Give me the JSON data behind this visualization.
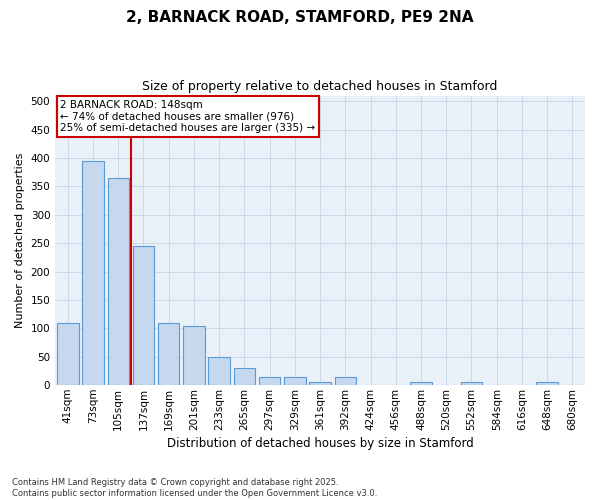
{
  "title": "2, BARNACK ROAD, STAMFORD, PE9 2NA",
  "subtitle": "Size of property relative to detached houses in Stamford",
  "xlabel": "Distribution of detached houses by size in Stamford",
  "ylabel": "Number of detached properties",
  "footer": "Contains HM Land Registry data © Crown copyright and database right 2025.\nContains public sector information licensed under the Open Government Licence v3.0.",
  "categories": [
    "41sqm",
    "73sqm",
    "105sqm",
    "137sqm",
    "169sqm",
    "201sqm",
    "233sqm",
    "265sqm",
    "297sqm",
    "329sqm",
    "361sqm",
    "392sqm",
    "424sqm",
    "456sqm",
    "488sqm",
    "520sqm",
    "552sqm",
    "584sqm",
    "616sqm",
    "648sqm",
    "680sqm"
  ],
  "values": [
    110,
    395,
    365,
    245,
    110,
    105,
    50,
    30,
    15,
    15,
    5,
    15,
    0,
    0,
    5,
    0,
    5,
    0,
    0,
    5,
    0
  ],
  "bar_color": "#c5d8ee",
  "bar_edge_color": "#5b9bd5",
  "grid_color": "#cad9ea",
  "background_color": "#eaf0f8",
  "annotation_box_text": "2 BARNACK ROAD: 148sqm\n← 74% of detached houses are smaller (976)\n25% of semi-detached houses are larger (335) →",
  "annotation_box_color": "#cc0000",
  "vline_color": "#cc0000",
  "vline_x": 2.5,
  "ylim": [
    0,
    510
  ],
  "yticks": [
    0,
    50,
    100,
    150,
    200,
    250,
    300,
    350,
    400,
    450,
    500
  ],
  "title_fontsize": 11,
  "subtitle_fontsize": 9,
  "tick_fontsize": 7.5,
  "ylabel_fontsize": 8,
  "xlabel_fontsize": 8.5
}
